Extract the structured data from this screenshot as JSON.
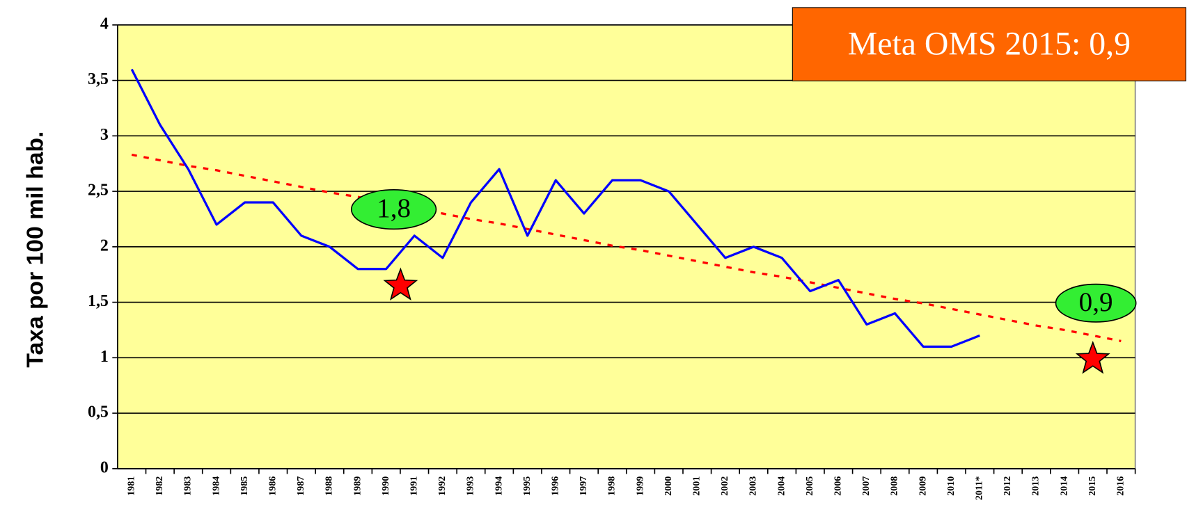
{
  "chart_data": {
    "type": "line",
    "title": "Meta OMS 2015: 0,9",
    "y_label": "Taxa por 100 mil hab.",
    "categories": [
      "1981",
      "1982",
      "1983",
      "1984",
      "1985",
      "1986",
      "1987",
      "1988",
      "1989",
      "1990",
      "1991",
      "1992",
      "1993",
      "1994",
      "1995",
      "1996",
      "1997",
      "1998",
      "1999",
      "2000",
      "2001",
      "2002",
      "2003",
      "2004",
      "2005",
      "2006",
      "2007",
      "2008",
      "2009",
      "2010",
      "2011*",
      "2012",
      "2013",
      "2014",
      "2015",
      "2016"
    ],
    "series": [
      {
        "color": "#0000ff",
        "style": "solid",
        "values": [
          3.6,
          3.1,
          2.7,
          2.2,
          2.4,
          2.4,
          2.1,
          2.0,
          1.8,
          1.8,
          2.1,
          1.9,
          2.4,
          2.7,
          2.1,
          2.6,
          2.3,
          2.6,
          2.6,
          2.5,
          2.2,
          1.9,
          2.0,
          1.9,
          1.6,
          1.7,
          1.3,
          1.4,
          1.1,
          1.1,
          1.2,
          null,
          null,
          null,
          null,
          null
        ]
      },
      {
        "color": "#ff0000",
        "style": "dashed",
        "values": [
          2.83,
          2.78,
          2.73,
          2.69,
          2.64,
          2.59,
          2.54,
          2.49,
          2.45,
          2.4,
          2.35,
          2.3,
          2.25,
          2.21,
          2.16,
          2.11,
          2.06,
          2.01,
          1.97,
          1.92,
          1.87,
          1.82,
          1.77,
          1.73,
          1.68,
          1.63,
          1.58,
          1.53,
          1.49,
          1.44,
          1.39,
          1.34,
          1.29,
          1.25,
          1.2,
          1.15
        ]
      }
    ],
    "annotations": [
      "1,8",
      "0,9"
    ],
    "ylim": [
      0,
      4
    ],
    "yticks": [
      0,
      {
        "value": 0.5,
        "label": "0,5"
      },
      1,
      {
        "value": 1.5,
        "label": "1,5"
      },
      2,
      {
        "value": 2.5,
        "label": "2,5"
      },
      3,
      {
        "value": 3.5,
        "label": "3,5"
      },
      4
    ],
    "grid": true,
    "background": "#ffff99"
  }
}
